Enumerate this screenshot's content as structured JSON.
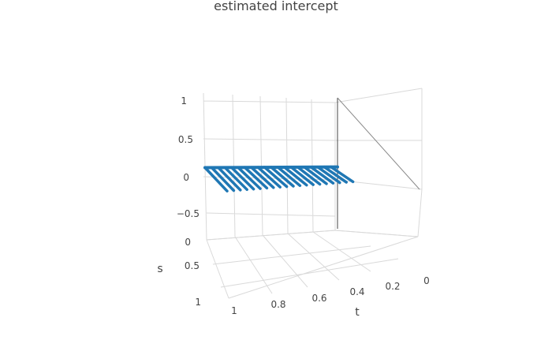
{
  "chart_data": {
    "type": "surface-lines",
    "title": "estimated intercept",
    "xlabel": "t",
    "ylabel": "s",
    "zlabel": "",
    "x_ticks": [
      "0",
      "0.2",
      "0.4",
      "0.6",
      "0.8",
      "1"
    ],
    "y_ticks": [
      "0",
      "0.5",
      "1"
    ],
    "z_ticks": [
      "1",
      "0.5",
      "0",
      "−0.5"
    ],
    "xlim": [
      0,
      1
    ],
    "ylim": [
      0,
      1
    ],
    "zlim": [
      -0.75,
      1.1
    ],
    "line_color": "#1f77b4",
    "series": [
      {
        "t": 0.05,
        "z_at_s0": 0.12,
        "z_at_s1": 0.16
      },
      {
        "t": 0.1,
        "z_at_s0": 0.12,
        "z_at_s1": 0.155
      },
      {
        "t": 0.15,
        "z_at_s0": 0.12,
        "z_at_s1": 0.15
      },
      {
        "t": 0.2,
        "z_at_s0": 0.12,
        "z_at_s1": 0.145
      },
      {
        "t": 0.25,
        "z_at_s0": 0.12,
        "z_at_s1": 0.14
      },
      {
        "t": 0.3,
        "z_at_s0": 0.12,
        "z_at_s1": 0.135
      },
      {
        "t": 0.35,
        "z_at_s0": 0.12,
        "z_at_s1": 0.13
      },
      {
        "t": 0.4,
        "z_at_s0": 0.12,
        "z_at_s1": 0.125
      },
      {
        "t": 0.45,
        "z_at_s0": 0.12,
        "z_at_s1": 0.12
      },
      {
        "t": 0.5,
        "z_at_s0": 0.12,
        "z_at_s1": 0.115
      },
      {
        "t": 0.55,
        "z_at_s0": 0.12,
        "z_at_s1": 0.11
      },
      {
        "t": 0.6,
        "z_at_s0": 0.12,
        "z_at_s1": 0.105
      },
      {
        "t": 0.65,
        "z_at_s0": 0.12,
        "z_at_s1": 0.1
      },
      {
        "t": 0.7,
        "z_at_s0": 0.12,
        "z_at_s1": 0.095
      },
      {
        "t": 0.75,
        "z_at_s0": 0.12,
        "z_at_s1": 0.09
      },
      {
        "t": 0.8,
        "z_at_s0": 0.12,
        "z_at_s1": 0.085
      },
      {
        "t": 0.85,
        "z_at_s0": 0.12,
        "z_at_s1": 0.08
      },
      {
        "t": 0.9,
        "z_at_s0": 0.12,
        "z_at_s1": 0.075
      },
      {
        "t": 0.95,
        "z_at_s0": 0.12,
        "z_at_s1": 0.07
      },
      {
        "t": 1.0,
        "z_at_s0": 0.12,
        "z_at_s1": 0.065
      }
    ]
  }
}
